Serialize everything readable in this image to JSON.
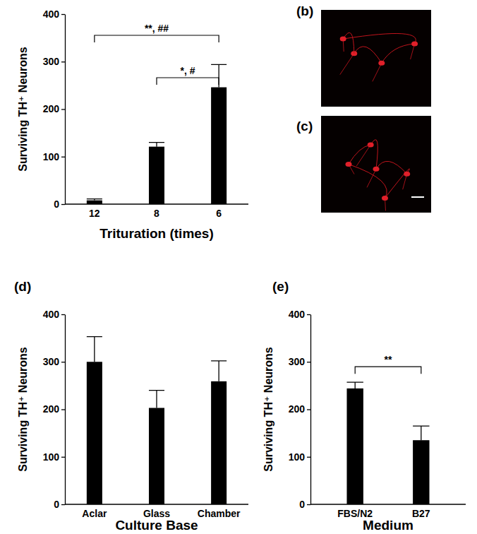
{
  "chart_data": [
    {
      "type": "bar",
      "y_label": "Surviving TH⁺ Neurons",
      "x_label": "Trituration (times)",
      "categories": [
        "12",
        "8",
        "6"
      ],
      "values": [
        8,
        121,
        246
      ],
      "errors": [
        3,
        9,
        48
      ],
      "color": "#000000",
      "ylim": [
        0,
        400
      ],
      "yticks": [
        0,
        100,
        200,
        300,
        400
      ],
      "annotations": [
        {
          "from": "12",
          "to": "6",
          "label": "**, ##"
        },
        {
          "from": "8",
          "to": "6",
          "label": "*, #"
        }
      ]
    },
    {
      "type": "bar",
      "title": "(d)",
      "y_label": "Surviving TH⁺ Neurons",
      "x_label": "Culture Base",
      "categories": [
        "Aclar",
        "Glass",
        "Chamber"
      ],
      "values": [
        300,
        203,
        259
      ],
      "errors": [
        53,
        37,
        43
      ],
      "color": "#000000",
      "ylim": [
        0,
        400
      ],
      "yticks": [
        0,
        100,
        200,
        300,
        400
      ]
    },
    {
      "type": "bar",
      "title": "(e)",
      "y_label": "Surviving TH⁺ Neurons",
      "x_label": "Medium",
      "categories": [
        "FBS/N2",
        "B27"
      ],
      "values": [
        244,
        135
      ],
      "errors": [
        13,
        30
      ],
      "color": "#000000",
      "ylim": [
        0,
        400
      ],
      "yticks": [
        0,
        100,
        200,
        300,
        400
      ],
      "annotations": [
        {
          "from": "FBS/N2",
          "to": "B27",
          "label": "**"
        }
      ]
    }
  ],
  "images": [
    {
      "label": "(b)"
    },
    {
      "label": "(c)"
    }
  ]
}
